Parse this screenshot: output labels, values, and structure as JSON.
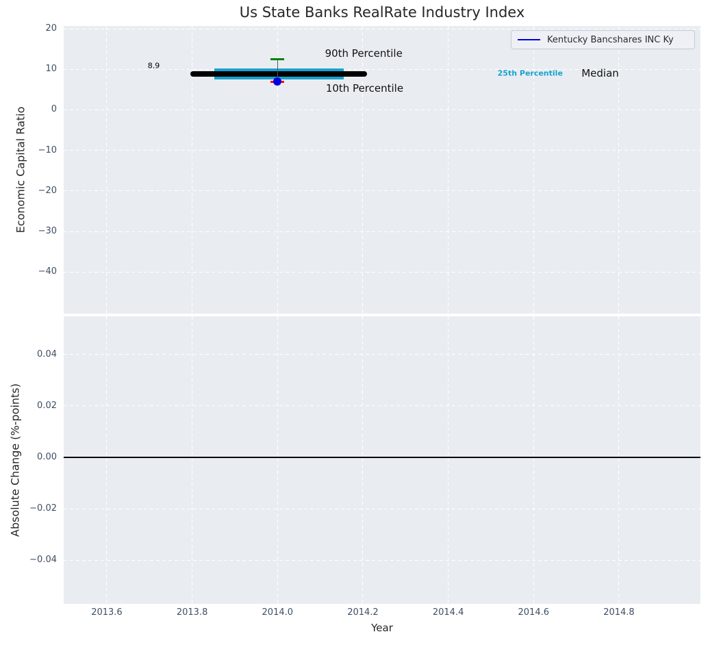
{
  "title": "Us State Banks RealRate Industry Index",
  "legend": {
    "label": "Kentucky Bancshares INC Ky"
  },
  "top_plot": {
    "ylabel": "Economic Capital Ratio",
    "yticks": [
      {
        "v": 20,
        "label": "20"
      },
      {
        "v": 10,
        "label": "10"
      },
      {
        "v": 0,
        "label": "0"
      },
      {
        "v": -10,
        "label": "−10"
      },
      {
        "v": -20,
        "label": "−20"
      },
      {
        "v": -30,
        "label": "−30"
      },
      {
        "v": -40,
        "label": "−40"
      }
    ]
  },
  "bottom_plot": {
    "ylabel": "Absolute Change (%-points)",
    "yticks": [
      {
        "v": 0.04,
        "label": "0.04"
      },
      {
        "v": 0.02,
        "label": "0.02"
      },
      {
        "v": 0.0,
        "label": "0.00"
      },
      {
        "v": -0.02,
        "label": "−0.02"
      },
      {
        "v": -0.04,
        "label": "−0.04"
      }
    ]
  },
  "xaxis": {
    "label": "Year",
    "ticks": [
      {
        "v": 2013.6,
        "label": "2013.6"
      },
      {
        "v": 2013.8,
        "label": "2013.8"
      },
      {
        "v": 2014.0,
        "label": "2014.0"
      },
      {
        "v": 2014.2,
        "label": "2014.2"
      },
      {
        "v": 2014.4,
        "label": "2014.4"
      },
      {
        "v": 2014.6,
        "label": "2014.6"
      },
      {
        "v": 2014.8,
        "label": "2014.8"
      }
    ]
  },
  "colors": {
    "company_blue": "#0000e0",
    "percentile90_green": "#008000",
    "percentile10_red": "#ff0000",
    "percentile25_cyan": "#17a2cf",
    "median_black": "#000000",
    "stem_gray": "#555555",
    "zero_line_black": "#000000",
    "plot_background": "#e9edf1",
    "grid_white": "#ffffff"
  },
  "chart_data": [
    {
      "type": "scatter",
      "title": "Us State Banks RealRate Industry Index",
      "xlabel": "Year",
      "ylabel": "Economic Capital Ratio",
      "xlim": [
        2013.5,
        2014.99
      ],
      "ylim": [
        -50.3,
        20.7
      ],
      "xticks": [
        2013.6,
        2013.8,
        2014.0,
        2014.2,
        2014.4,
        2014.6,
        2014.8
      ],
      "yticks": [
        20,
        10,
        0,
        -10,
        -20,
        -30,
        -40
      ],
      "grid": true,
      "legend_position": "upper right",
      "series": [
        {
          "name": "Kentucky Bancshares INC Ky",
          "type": "scatter",
          "x": [
            2014.0
          ],
          "y": [
            7.0
          ],
          "color": "#0000e0",
          "marker": "circle"
        }
      ],
      "industry_percentiles": {
        "year": 2014.0,
        "median": 8.9,
        "p25": 8.9,
        "p90": 12.5,
        "p10": 7.0,
        "median_span": [
          2013.795,
          2014.21
        ],
        "p25_span": [
          2013.852,
          2014.155
        ],
        "cap_halfwidth_years": 0.016
      },
      "annotations": [
        {
          "text": "8.9",
          "x": 2013.71,
          "y": 10.9,
          "color": "#000000",
          "size": "small",
          "weight": "normal"
        },
        {
          "text": "90th Percentile",
          "x": 2014.202,
          "y": 14.0,
          "color": "#111111",
          "size": "normal",
          "weight": "normal"
        },
        {
          "text": "10th Percentile",
          "x": 2014.204,
          "y": 5.4,
          "color": "#111111",
          "size": "normal",
          "weight": "normal"
        },
        {
          "text": "25th Percentile",
          "x": 2014.592,
          "y": 9.1,
          "color": "#17a2cf",
          "size": "small",
          "weight": "bold"
        },
        {
          "text": "Median",
          "x": 2014.756,
          "y": 9.1,
          "color": "#111111",
          "size": "normal",
          "weight": "normal"
        }
      ]
    },
    {
      "type": "line",
      "title": "",
      "xlabel": "Year",
      "ylabel": "Absolute Change (%-points)",
      "xlim": [
        2013.5,
        2014.99
      ],
      "ylim": [
        -0.057,
        0.055
      ],
      "xticks": [
        2013.6,
        2013.8,
        2014.0,
        2014.2,
        2014.4,
        2014.6,
        2014.8
      ],
      "yticks": [
        0.04,
        0.02,
        0.0,
        -0.02,
        -0.04
      ],
      "grid": true,
      "zero_line_y": 0.0,
      "series": []
    }
  ]
}
